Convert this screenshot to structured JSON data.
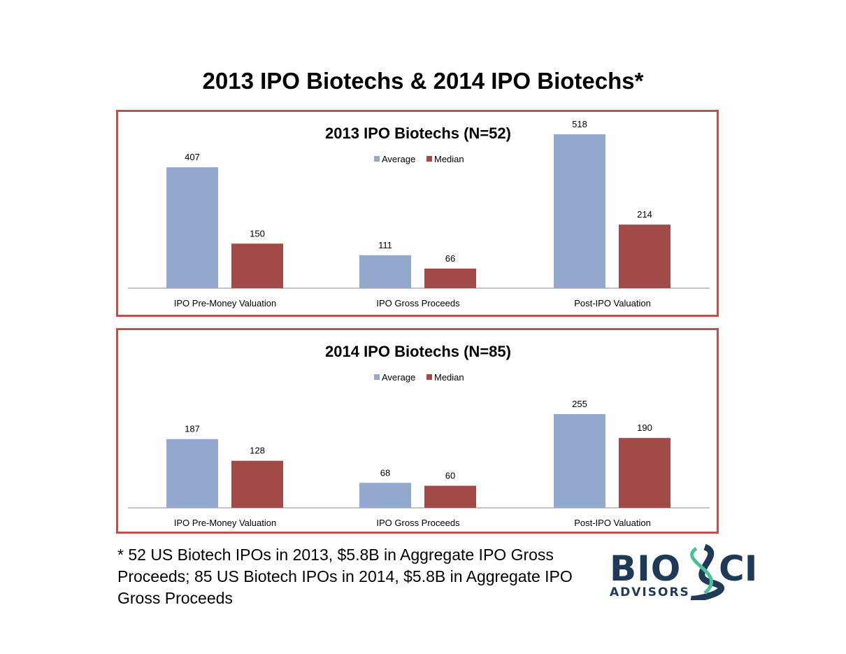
{
  "title": "2013 IPO Biotechs & 2014 IPO Biotechs*",
  "chart_data": [
    {
      "type": "bar",
      "title": "2013 IPO Biotechs (N=52)",
      "categories": [
        "IPO Pre-Money Valuation",
        "IPO Gross Proceeds",
        "Post-IPO Valuation"
      ],
      "series": [
        {
          "name": "Average",
          "values": [
            407,
            111,
            518
          ],
          "color": "#95a9cf"
        },
        {
          "name": "Median",
          "values": [
            150,
            66,
            214
          ],
          "color": "#a04b47"
        }
      ],
      "legend": "top-center",
      "ylim": [
        0,
        518
      ],
      "grid": false
    },
    {
      "type": "bar",
      "title": "2014 IPO Biotechs (N=85)",
      "categories": [
        "IPO Pre-Money Valuation",
        "IPO Gross Proceeds",
        "Post-IPO Valuation"
      ],
      "series": [
        {
          "name": "Average",
          "values": [
            187,
            68,
            255
          ],
          "color": "#95a9cf"
        },
        {
          "name": "Median",
          "values": [
            128,
            60,
            190
          ],
          "color": "#a04b47"
        }
      ],
      "legend": "top-center",
      "ylim": [
        0,
        255
      ],
      "grid": false
    }
  ],
  "footnote": "* 52 US Biotech IPOs in 2013, $5.8B in Aggregate IPO Gross Proceeds; 85 US Biotech IPOs in 2014, $5.8B in Aggregate IPO Gross Proceeds",
  "logo": {
    "name": "BIOSCI",
    "sub": "ADVISORS",
    "color": "#1f3a57",
    "accent": "#4dbf9b"
  }
}
